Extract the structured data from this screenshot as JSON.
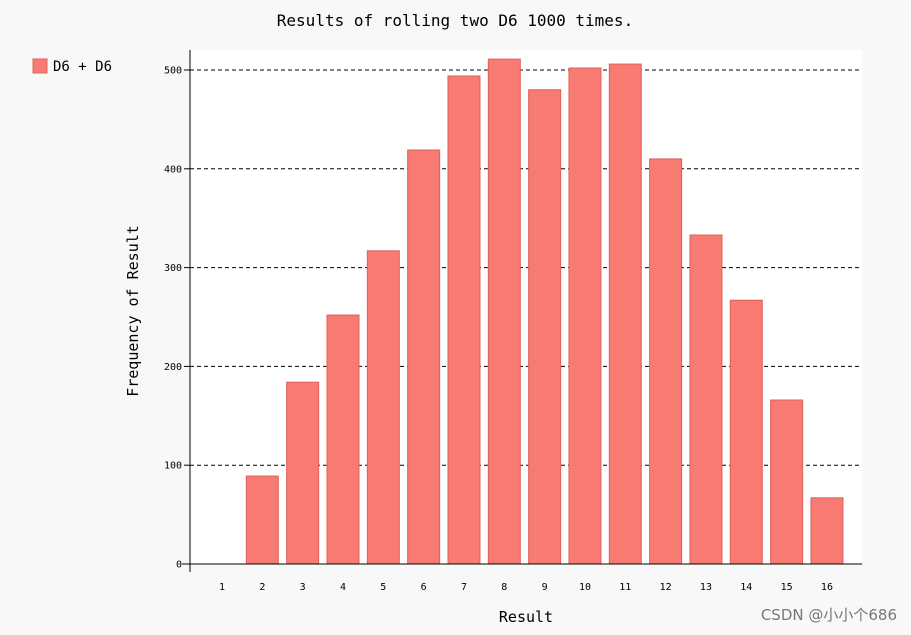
{
  "chart_data": {
    "type": "bar",
    "title": "Results of rolling two D6 1000 times.",
    "xlabel": "Result",
    "ylabel": "Frequency of Result",
    "categories": [
      "1",
      "2",
      "3",
      "4",
      "5",
      "6",
      "7",
      "8",
      "9",
      "10",
      "11",
      "12",
      "13",
      "14",
      "15",
      "16"
    ],
    "series": [
      {
        "name": "D6 + D6",
        "values": [
          0,
          89,
          184,
          252,
          317,
          419,
          494,
          511,
          480,
          502,
          506,
          410,
          333,
          267,
          166,
          67
        ]
      }
    ],
    "ylim": [
      0,
      525
    ],
    "yticks": [
      0,
      100,
      200,
      300,
      400,
      500
    ],
    "grid": "horizontal dashed",
    "legend": "top-left",
    "colors": {
      "bar": "#f77b72",
      "bar_edge": "#e0605a",
      "background": "#f8f8f8",
      "plot_background": "#ffffff",
      "grid": "#000000"
    }
  },
  "watermark": "CSDN @小小个686"
}
